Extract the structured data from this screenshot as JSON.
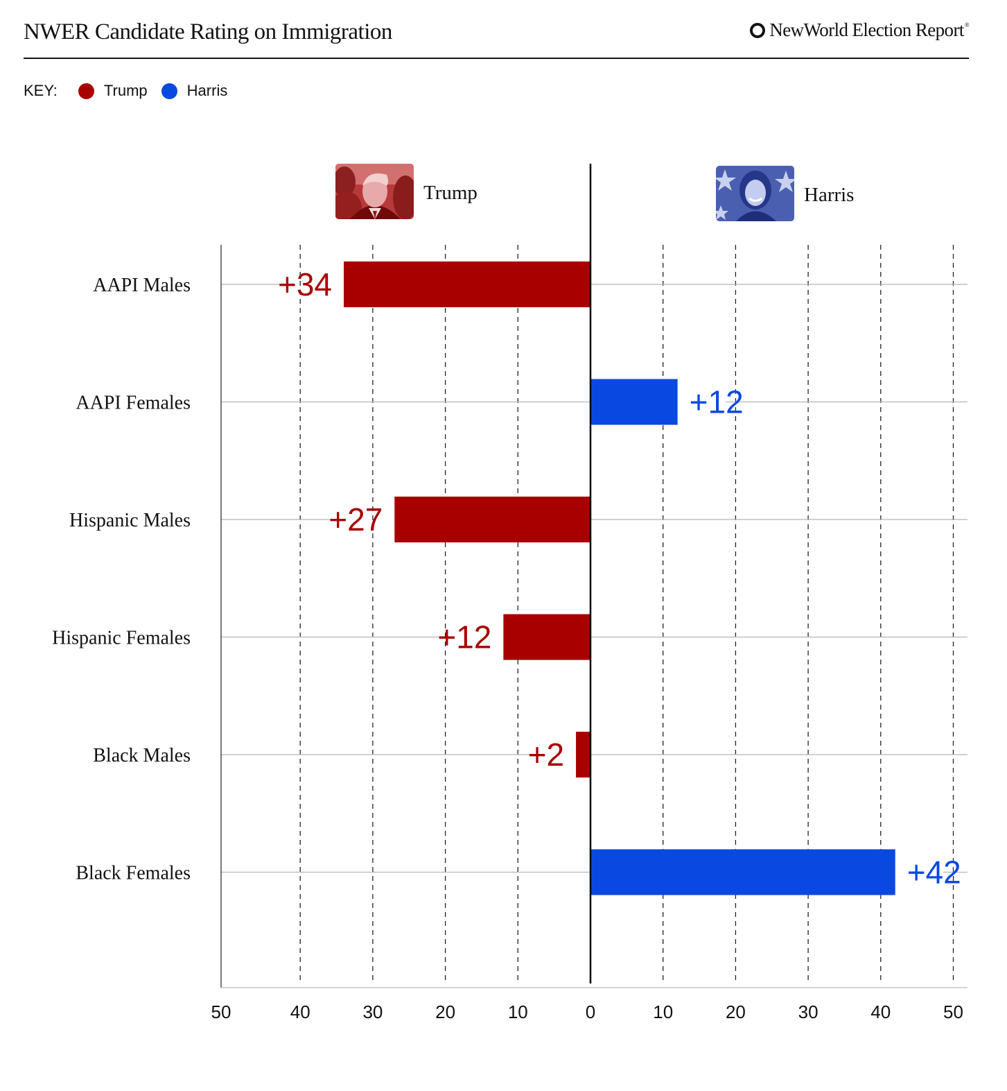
{
  "header": {
    "title": "NWER Candidate Rating on Immigration",
    "brand": "NewWorld Election Report",
    "brand_mark": "®"
  },
  "key": {
    "title": "KEY:",
    "items": [
      {
        "label": "Trump",
        "color": "#a80000"
      },
      {
        "label": "Harris",
        "color": "#0a48e2"
      }
    ]
  },
  "candidates": {
    "left": {
      "name": "Trump",
      "photo_icon": "trump-portrait-photo",
      "tint": "#a80000"
    },
    "right": {
      "name": "Harris",
      "photo_icon": "harris-portrait-photo",
      "tint": "#3c55b8"
    }
  },
  "chart_data": {
    "type": "bar",
    "orientation": "horizontal-diverging",
    "categories": [
      "AAPI Males",
      "AAPI Females",
      "Hispanic Males",
      "Hispanic Females",
      "Black Males",
      "Black Females"
    ],
    "series": [
      {
        "name": "Trump",
        "color": "#a80000",
        "values": [
          34,
          0,
          27,
          12,
          2,
          0
        ]
      },
      {
        "name": "Harris",
        "color": "#0a48e2",
        "values": [
          0,
          12,
          0,
          0,
          0,
          42
        ]
      }
    ],
    "data_labels": [
      "+34",
      "+12",
      "+27",
      "+12",
      "+2",
      "+42"
    ],
    "leader": [
      "Trump",
      "Harris",
      "Trump",
      "Trump",
      "Trump",
      "Harris"
    ],
    "x_ticks_left": [
      "50",
      "40",
      "30",
      "20",
      "10"
    ],
    "x_ticks_center": "0",
    "x_ticks_right": [
      "10",
      "20",
      "30",
      "40",
      "50"
    ],
    "xlim": [
      -50,
      50
    ],
    "grid": "vertical dashed",
    "legend": "top-left"
  }
}
